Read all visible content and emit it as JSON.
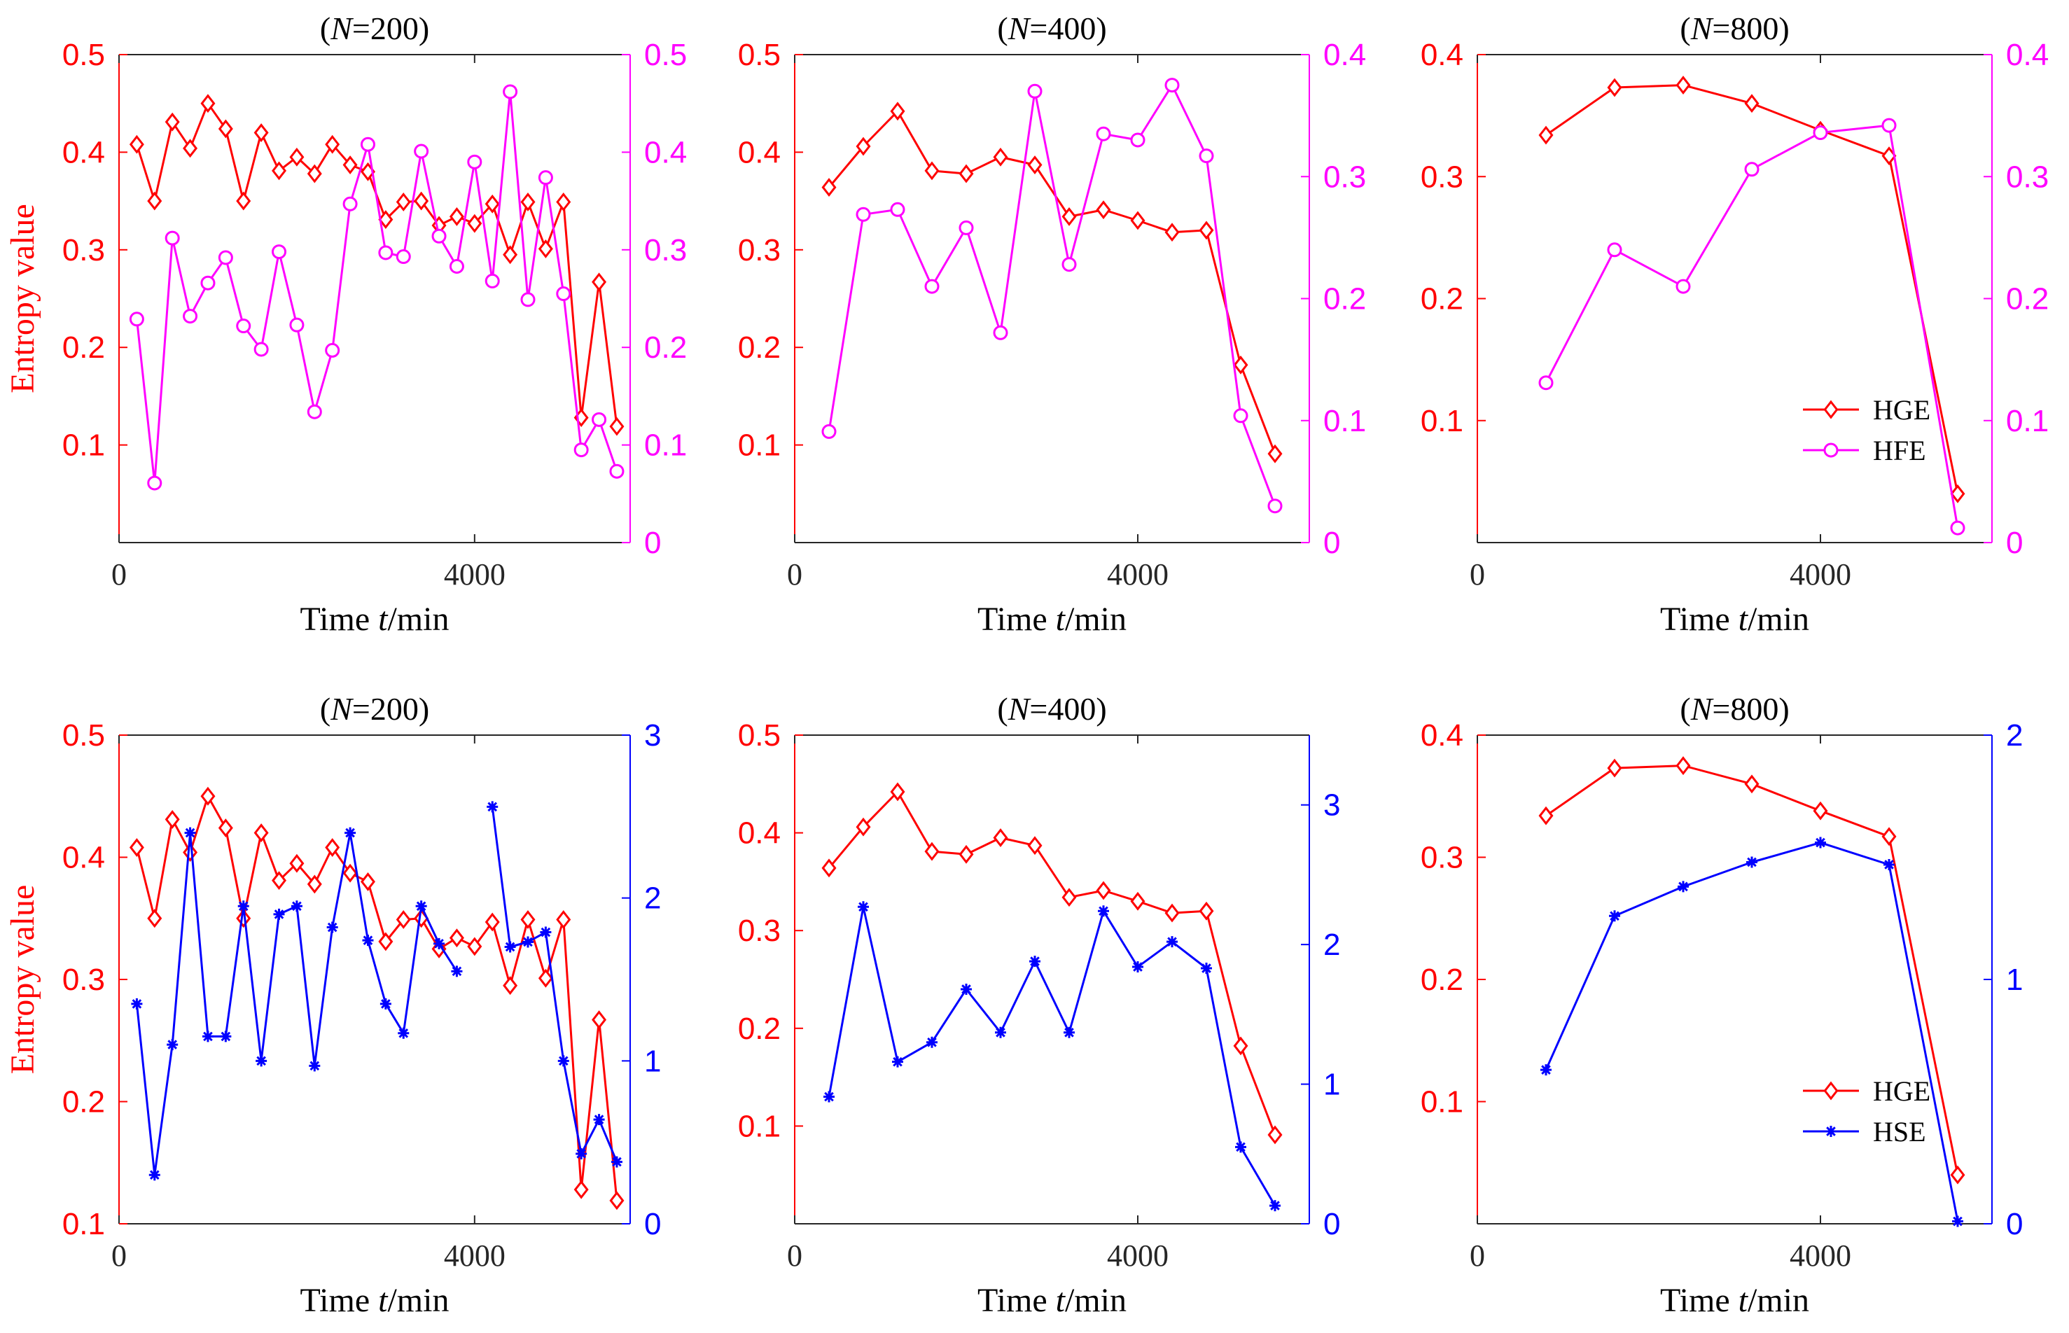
{
  "chart_data": [
    {
      "type": "line",
      "title": "(N=200)",
      "title_parts": {
        "prefix": "(",
        "var": "N",
        "suffix": "=200)"
      },
      "xlabel": "Time t/min",
      "xlabel_parts": {
        "prefix": "Time ",
        "var": "t",
        "suffix": "/min"
      },
      "ylabel": "Entropy value",
      "xlim": [
        0,
        5750
      ],
      "xticks": [
        0,
        4000
      ],
      "xtick_labels": [
        "0",
        "4000"
      ],
      "ylim_left": [
        0,
        0.5
      ],
      "yticks_left": [
        0.1,
        0.2,
        0.3,
        0.4,
        0.5
      ],
      "ytick_labels_left": [
        "0.1",
        "0.2",
        "0.3",
        "0.4",
        "0.5"
      ],
      "ylim_right": [
        0,
        0.5
      ],
      "yticks_right": [
        0,
        0.1,
        0.2,
        0.3,
        0.4,
        0.5
      ],
      "ytick_labels_right": [
        "0",
        "0.1",
        "0.2",
        "0.3",
        "0.4",
        "0.5"
      ],
      "left_color": "#ff0000",
      "right_color": "#ff00ff",
      "series": [
        {
          "name": "HGE",
          "axis": "left",
          "marker": "diamond",
          "color": "#ff0000",
          "x": [
            200,
            400,
            600,
            800,
            1000,
            1200,
            1400,
            1600,
            1800,
            2000,
            2200,
            2400,
            2600,
            2800,
            3000,
            3200,
            3400,
            3600,
            3800,
            4000,
            4200,
            4400,
            4600,
            4800,
            5000,
            5200,
            5400,
            5600
          ],
          "y": [
            0.408,
            0.35,
            0.431,
            0.404,
            0.45,
            0.424,
            0.35,
            0.42,
            0.381,
            0.395,
            0.378,
            0.408,
            0.387,
            0.38,
            0.331,
            0.349,
            0.35,
            0.325,
            0.334,
            0.327,
            0.347,
            0.295,
            0.349,
            0.301,
            0.349,
            0.128,
            0.267,
            0.119
          ]
        },
        {
          "name": "HFE",
          "axis": "right",
          "marker": "circle",
          "color": "#ff00ff",
          "x": [
            200,
            400,
            600,
            800,
            1000,
            1200,
            1400,
            1600,
            1800,
            2000,
            2200,
            2400,
            2600,
            2800,
            3000,
            3200,
            3400,
            3600,
            3800,
            4000,
            4200,
            4400,
            4600,
            4800,
            5000,
            5200,
            5400,
            5600
          ],
          "y": [
            0.229,
            0.061,
            0.312,
            0.232,
            0.266,
            0.292,
            0.222,
            0.198,
            0.298,
            0.223,
            0.134,
            0.197,
            0.347,
            0.408,
            0.297,
            0.293,
            0.401,
            0.314,
            0.283,
            0.39,
            0.268,
            0.462,
            0.249,
            0.374,
            0.255,
            0.095,
            0.126,
            0.073
          ]
        }
      ]
    },
    {
      "type": "line",
      "title": "(N=400)",
      "title_parts": {
        "prefix": "(",
        "var": "N",
        "suffix": "=400)"
      },
      "xlabel": "Time t/min",
      "xlabel_parts": {
        "prefix": "Time ",
        "var": "t",
        "suffix": "/min"
      },
      "ylabel": "",
      "xlim": [
        0,
        6000
      ],
      "xticks": [
        0,
        4000
      ],
      "xtick_labels": [
        "0",
        "4000"
      ],
      "ylim_left": [
        0,
        0.5
      ],
      "yticks_left": [
        0.1,
        0.2,
        0.3,
        0.4,
        0.5
      ],
      "ytick_labels_left": [
        "0.1",
        "0.2",
        "0.3",
        "0.4",
        "0.5"
      ],
      "ylim_right": [
        0,
        0.4
      ],
      "yticks_right": [
        0,
        0.1,
        0.2,
        0.3,
        0.4
      ],
      "ytick_labels_right": [
        "0",
        "0.1",
        "0.2",
        "0.3",
        "0.4"
      ],
      "left_color": "#ff0000",
      "right_color": "#ff00ff",
      "series": [
        {
          "name": "HGE",
          "axis": "left",
          "marker": "diamond",
          "color": "#ff0000",
          "x": [
            400,
            800,
            1200,
            1600,
            2000,
            2400,
            2800,
            3200,
            3600,
            4000,
            4400,
            4800,
            5200,
            5600
          ],
          "y": [
            0.364,
            0.406,
            0.442,
            0.381,
            0.378,
            0.395,
            0.387,
            0.334,
            0.341,
            0.33,
            0.318,
            0.32,
            0.182,
            0.091
          ]
        },
        {
          "name": "HFE",
          "axis": "right",
          "marker": "circle",
          "color": "#ff00ff",
          "x": [
            400,
            800,
            1200,
            1600,
            2000,
            2400,
            2800,
            3200,
            3600,
            4000,
            4400,
            4800,
            5200,
            5600
          ],
          "y": [
            0.091,
            0.269,
            0.273,
            0.21,
            0.258,
            0.172,
            0.37,
            0.228,
            0.335,
            0.33,
            0.375,
            0.317,
            0.104,
            0.03
          ]
        }
      ]
    },
    {
      "type": "line",
      "title": "(N=800)",
      "title_parts": {
        "prefix": "(",
        "var": "N",
        "suffix": "=800)"
      },
      "xlabel": "Time t/min",
      "xlabel_parts": {
        "prefix": "Time ",
        "var": "t",
        "suffix": "/min"
      },
      "ylabel": "",
      "xlim": [
        0,
        6000
      ],
      "xticks": [
        0,
        4000
      ],
      "xtick_labels": [
        "0",
        "4000"
      ],
      "ylim_left": [
        0,
        0.4
      ],
      "yticks_left": [
        0.1,
        0.2,
        0.3,
        0.4
      ],
      "ytick_labels_left": [
        "0.1",
        "0.2",
        "0.3",
        "0.4"
      ],
      "ylim_right": [
        0,
        0.4
      ],
      "yticks_right": [
        0,
        0.1,
        0.2,
        0.3,
        0.4
      ],
      "ytick_labels_right": [
        "0",
        "0.1",
        "0.2",
        "0.3",
        "0.4"
      ],
      "left_color": "#ff0000",
      "right_color": "#ff00ff",
      "legend": {
        "location": "lower-right",
        "entries": [
          "HGE",
          "HFE"
        ]
      },
      "series": [
        {
          "name": "HGE",
          "axis": "left",
          "marker": "diamond",
          "color": "#ff0000",
          "x": [
            800,
            1600,
            2400,
            3200,
            4000,
            4800,
            5600
          ],
          "y": [
            0.334,
            0.373,
            0.375,
            0.36,
            0.338,
            0.317,
            0.04
          ]
        },
        {
          "name": "HFE",
          "axis": "right",
          "marker": "circle",
          "color": "#ff00ff",
          "x": [
            800,
            1600,
            2400,
            3200,
            4000,
            4800,
            5600
          ],
          "y": [
            0.131,
            0.24,
            0.21,
            0.306,
            0.336,
            0.342,
            0.012
          ]
        }
      ]
    },
    {
      "type": "line",
      "title": "(N=200)",
      "title_parts": {
        "prefix": "(",
        "var": "N",
        "suffix": "=200)"
      },
      "xlabel": "Time t/min",
      "xlabel_parts": {
        "prefix": "Time ",
        "var": "t",
        "suffix": "/min"
      },
      "ylabel": "Entropy value",
      "xlim": [
        0,
        5750
      ],
      "xticks": [
        0,
        4000
      ],
      "xtick_labels": [
        "0",
        "4000"
      ],
      "ylim_left": [
        0.1,
        0.5
      ],
      "yticks_left": [
        0.1,
        0.2,
        0.3,
        0.4,
        0.5
      ],
      "ytick_labels_left": [
        "0.1",
        "0.2",
        "0.3",
        "0.4",
        "0.5"
      ],
      "ylim_right": [
        0,
        3
      ],
      "yticks_right": [
        0,
        1,
        2,
        3
      ],
      "ytick_labels_right": [
        "0",
        "1",
        "2",
        "3"
      ],
      "left_color": "#ff0000",
      "right_color": "#0000ff",
      "series": [
        {
          "name": "HGE",
          "axis": "left",
          "marker": "diamond",
          "color": "#ff0000",
          "x": [
            200,
            400,
            600,
            800,
            1000,
            1200,
            1400,
            1600,
            1800,
            2000,
            2200,
            2400,
            2600,
            2800,
            3000,
            3200,
            3400,
            3600,
            3800,
            4000,
            4200,
            4400,
            4600,
            4800,
            5000,
            5200,
            5400,
            5600
          ],
          "y": [
            0.408,
            0.35,
            0.431,
            0.404,
            0.45,
            0.424,
            0.35,
            0.42,
            0.381,
            0.395,
            0.378,
            0.408,
            0.387,
            0.38,
            0.331,
            0.349,
            0.35,
            0.325,
            0.334,
            0.327,
            0.347,
            0.295,
            0.349,
            0.301,
            0.349,
            0.128,
            0.267,
            0.119
          ]
        },
        {
          "name": "HSE",
          "axis": "right",
          "marker": "asterisk",
          "color": "#0000ff",
          "x": [
            200,
            400,
            600,
            800,
            1000,
            1200,
            1400,
            1600,
            1800,
            2000,
            2200,
            2400,
            2600,
            2800,
            3000,
            3200,
            3400,
            3600,
            3800,
            null,
            4200,
            4400,
            4600,
            4800,
            5000,
            5200,
            5400,
            5600
          ],
          "y": [
            1.35,
            0.3,
            1.1,
            2.4,
            1.15,
            1.15,
            1.95,
            1.0,
            1.9,
            1.95,
            0.97,
            1.82,
            2.4,
            1.74,
            1.35,
            1.17,
            1.95,
            1.72,
            1.55,
            null,
            2.56,
            1.7,
            1.73,
            1.79,
            1.0,
            0.43,
            0.64,
            0.38
          ]
        }
      ]
    },
    {
      "type": "line",
      "title": "(N=400)",
      "title_parts": {
        "prefix": "(",
        "var": "N",
        "suffix": "=400)"
      },
      "xlabel": "Time t/min",
      "xlabel_parts": {
        "prefix": "Time ",
        "var": "t",
        "suffix": "/min"
      },
      "ylabel": "",
      "xlim": [
        0,
        6000
      ],
      "xticks": [
        0,
        4000
      ],
      "xtick_labels": [
        "0",
        "4000"
      ],
      "ylim_left": [
        0,
        0.5
      ],
      "yticks_left": [
        0.1,
        0.2,
        0.3,
        0.4,
        0.5
      ],
      "ytick_labels_left": [
        "0.1",
        "0.2",
        "0.3",
        "0.4",
        "0.5"
      ],
      "ylim_right": [
        0,
        3.5
      ],
      "yticks_right": [
        0,
        1,
        2,
        3
      ],
      "ytick_labels_right": [
        "0",
        "1",
        "2",
        "3"
      ],
      "left_color": "#ff0000",
      "right_color": "#0000ff",
      "series": [
        {
          "name": "HGE",
          "axis": "left",
          "marker": "diamond",
          "color": "#ff0000",
          "x": [
            400,
            800,
            1200,
            1600,
            2000,
            2400,
            2800,
            3200,
            3600,
            4000,
            4400,
            4800,
            5200,
            5600
          ],
          "y": [
            0.364,
            0.406,
            0.442,
            0.381,
            0.378,
            0.395,
            0.387,
            0.334,
            0.341,
            0.33,
            0.318,
            0.32,
            0.182,
            0.091
          ]
        },
        {
          "name": "HSE",
          "axis": "right",
          "marker": "asterisk",
          "color": "#0000ff",
          "x": [
            400,
            800,
            1200,
            1600,
            2000,
            2400,
            2800,
            3200,
            3600,
            4000,
            4400,
            4800,
            5200,
            5600
          ],
          "y": [
            0.91,
            2.27,
            1.16,
            1.3,
            1.68,
            1.37,
            1.88,
            1.37,
            2.24,
            1.84,
            2.02,
            1.83,
            0.55,
            0.13
          ]
        }
      ]
    },
    {
      "type": "line",
      "title": "(N=800)",
      "title_parts": {
        "prefix": "(",
        "var": "N",
        "suffix": "=800)"
      },
      "xlabel": "Time t/min",
      "xlabel_parts": {
        "prefix": "Time ",
        "var": "t",
        "suffix": "/min"
      },
      "ylabel": "",
      "xlim": [
        0,
        6000
      ],
      "xticks": [
        0,
        4000
      ],
      "xtick_labels": [
        "0",
        "4000"
      ],
      "ylim_left": [
        0,
        0.4
      ],
      "yticks_left": [
        0.1,
        0.2,
        0.3,
        0.4
      ],
      "ytick_labels_left": [
        "0.1",
        "0.2",
        "0.3",
        "0.4"
      ],
      "ylim_right": [
        0,
        2
      ],
      "yticks_right": [
        0,
        1,
        2
      ],
      "ytick_labels_right": [
        "0",
        "1",
        "2"
      ],
      "left_color": "#ff0000",
      "right_color": "#0000ff",
      "legend": {
        "location": "lower-right",
        "entries": [
          "HGE",
          "HSE"
        ]
      },
      "series": [
        {
          "name": "HGE",
          "axis": "left",
          "marker": "diamond",
          "color": "#ff0000",
          "x": [
            800,
            1600,
            2400,
            3200,
            4000,
            4800,
            5600
          ],
          "y": [
            0.334,
            0.373,
            0.375,
            0.36,
            0.338,
            0.317,
            0.04
          ]
        },
        {
          "name": "HSE",
          "axis": "right",
          "marker": "asterisk",
          "color": "#0000ff",
          "x": [
            800,
            1600,
            2400,
            3200,
            4000,
            4800,
            5600
          ],
          "y": [
            0.63,
            1.26,
            1.38,
            1.48,
            1.56,
            1.47,
            0.01
          ]
        }
      ]
    }
  ]
}
